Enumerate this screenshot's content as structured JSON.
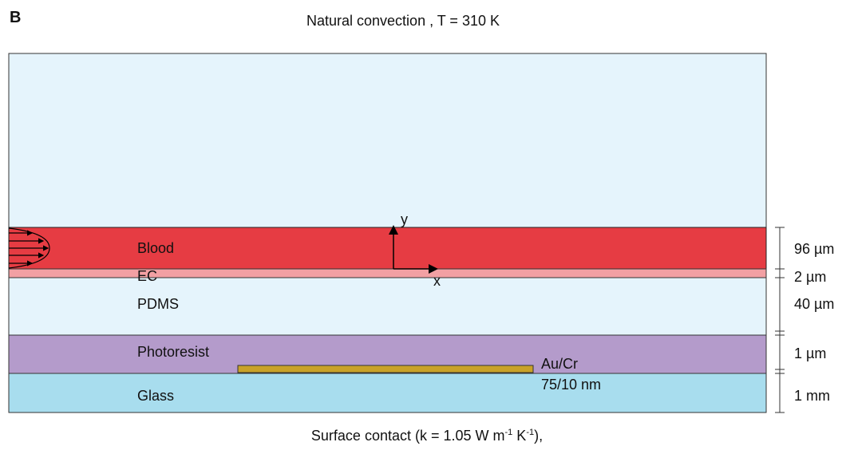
{
  "panel_label": "B",
  "title": "Natural convection , T = 310 K",
  "layers": {
    "blood": "Blood",
    "ec": "EC",
    "pdms": "PDMS",
    "photoresist": "Photoresist",
    "glass": "Glass"
  },
  "electrode": {
    "name": "Au/Cr",
    "thickness": "75/10 nm"
  },
  "axes": {
    "x": "x",
    "y": "y"
  },
  "dimensions": [
    "96 µm",
    "2 µm",
    "40 µm",
    "1 µm",
    "1 mm"
  ],
  "caption": {
    "text": "Surface contact (k = 1.05 W m",
    "sup1": "-1",
    "mid": " K",
    "sup2": "-1",
    "end": "),"
  }
}
